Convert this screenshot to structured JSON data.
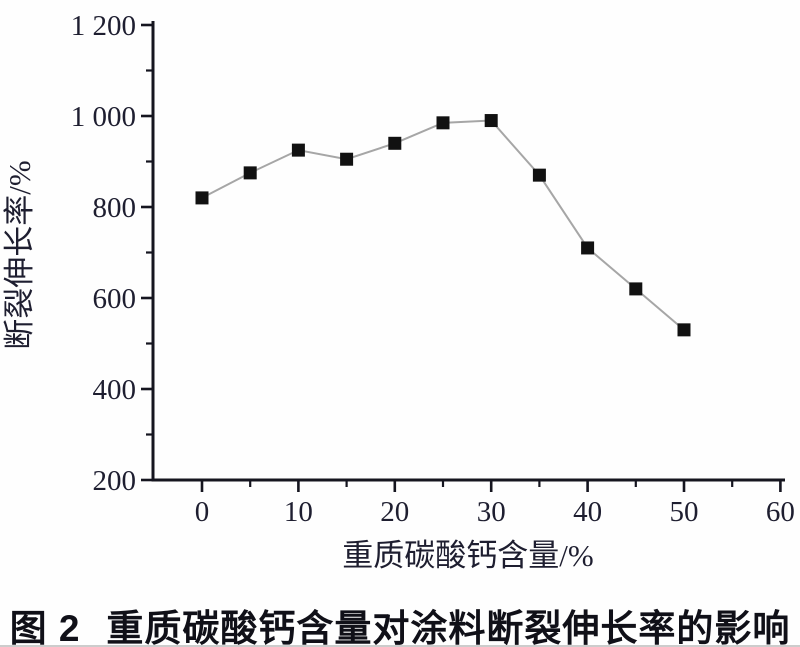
{
  "figure": {
    "caption_prefix": "图 2",
    "caption_text": "重质碳酸钙含量对涂料断裂伸长率的影响"
  },
  "chart_data": {
    "type": "line",
    "title": "",
    "xlabel": "重质碳酸钙含量/%",
    "ylabel": "断裂伸长率/%",
    "series_name": "断裂伸长率",
    "x": [
      0,
      5,
      10,
      15,
      20,
      25,
      30,
      35,
      40,
      45,
      50
    ],
    "values": [
      820,
      875,
      925,
      905,
      940,
      985,
      990,
      870,
      710,
      620,
      530
    ],
    "xlim": [
      -5,
      60.5
    ],
    "ylim": [
      200,
      1200
    ],
    "x_major_ticks": [
      0,
      10,
      20,
      30,
      40,
      50,
      60
    ],
    "x_minor_ticks": [
      5,
      15,
      25,
      35,
      45,
      55
    ],
    "y_major_ticks": [
      200,
      400,
      600,
      800,
      1000,
      1200
    ],
    "y_major_tick_labels": [
      "200",
      "400",
      "600",
      "800",
      "1 000",
      "1 200"
    ],
    "y_minor_ticks": [
      300,
      500,
      700,
      900,
      1100
    ],
    "marker": "square",
    "grid": false,
    "legend": "none",
    "colors": {
      "marker": "#111111",
      "line": "#a6a6a6",
      "axis": "#15151f",
      "tick_label": "#1e1e30",
      "caption": "#101018"
    }
  }
}
